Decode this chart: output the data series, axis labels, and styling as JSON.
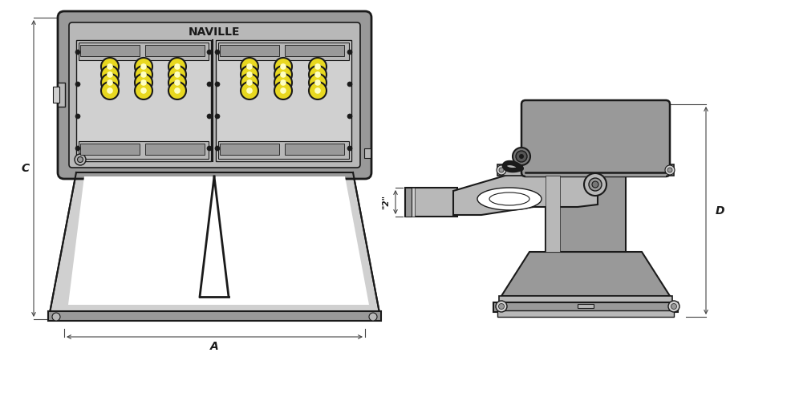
{
  "bg": "#ffffff",
  "dk": "#1a1a1a",
  "g1": "#555555",
  "g2": "#777777",
  "g3": "#999999",
  "g4": "#b8b8b8",
  "g5": "#d0d0d0",
  "yw": "#e8d820",
  "dim": "#444444",
  "naville": "NAVILLE",
  "lA": "A",
  "lC": "C",
  "lD": "D",
  "l2": "\"2\"",
  "figsize": [
    9.86,
    4.9
  ],
  "dpi": 100
}
